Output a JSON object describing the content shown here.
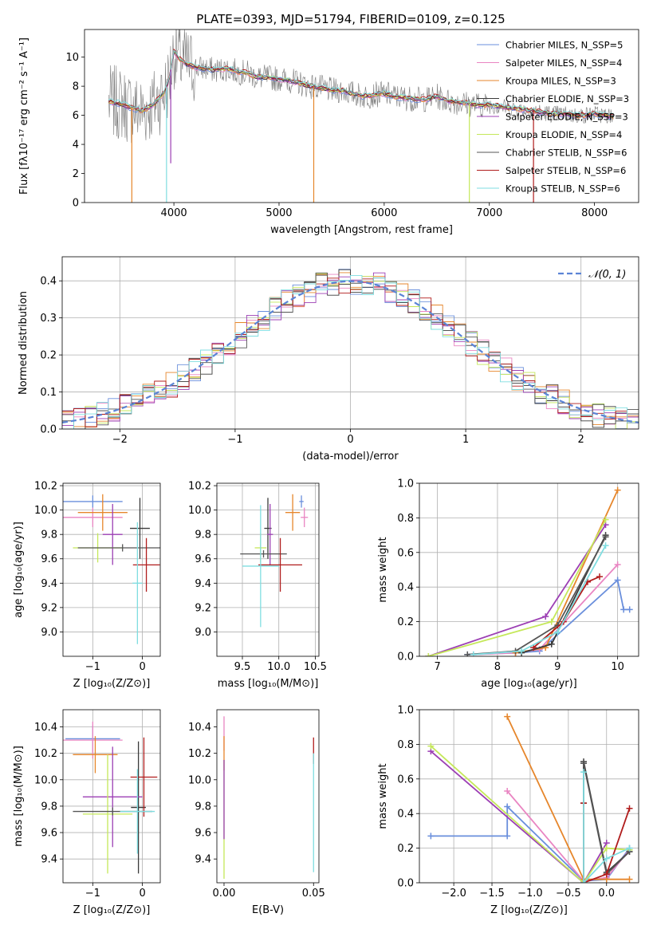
{
  "figure_title": "PLATE=0393, MJD=51794, FIBERID=0109, z=0.125",
  "colors": {
    "Chabrier MILES": "#6a8fdc",
    "Salpeter MILES": "#e985c2",
    "Kroupa MILES": "#e6862b",
    "Chabrier ELODIE": "#3a3a3a",
    "Salpeter ELODIE": "#9c3fb4",
    "Kroupa ELODIE": "#c5e85a",
    "Chabrier STELIB": "#555555",
    "Salpeter STELIB": "#b01c1c",
    "Kroupa STELIB": "#7fdde0"
  },
  "chart_data": [
    {
      "type": "line",
      "title": "PLATE=0393, MJD=51794, FIBERID=0109, z=0.125",
      "xlabel": "wavelength [Angstrom, rest frame]",
      "ylabel": "Flux [fλ10⁻¹⁷ erg cm⁻² s⁻¹ A⁻¹]",
      "xlim": [
        3150,
        8420
      ],
      "ylim": [
        0,
        11.9
      ],
      "xticks": [
        4000,
        5000,
        6000,
        7000,
        8000
      ],
      "yticks": [
        0,
        2,
        4,
        6,
        8,
        10
      ],
      "grid": false,
      "legend": "top-right",
      "legend_entries": [
        "Chabrier MILES, N_SSP=5",
        "Salpeter MILES, N_SSP=4",
        "Kroupa MILES, N_SSP=3",
        "Chabrier ELODIE, N_SSP=3",
        "Salpeter ELODIE, N_SSP=3",
        "Kroupa ELODIE, N_SSP=4",
        "Chabrier STELIB, N_SSP=6",
        "Salpeter STELIB, N_SSP=6",
        "Kroupa STELIB, N_SSP=6"
      ],
      "data_spectrum": {
        "x": [
          3400,
          3500,
          3600,
          3700,
          3800,
          3900,
          3950,
          4000,
          4050,
          4100,
          4200,
          4300,
          4400,
          4500,
          4600,
          4700,
          4800,
          4900,
          5000,
          5100,
          5200,
          5300,
          5400,
          5500,
          5600,
          5700,
          5800,
          5900,
          6000,
          6100,
          6200,
          6300,
          6400,
          6500,
          6600,
          6700,
          6800,
          6900,
          7000,
          7100,
          7200,
          7300,
          7400,
          7500,
          7600,
          7700,
          7800,
          7900,
          8000,
          8100,
          8180
        ],
        "y": [
          6.9,
          6.8,
          6.5,
          6.3,
          6.7,
          7.5,
          8.3,
          10.4,
          9.9,
          9.6,
          9.3,
          9.2,
          9.1,
          9.2,
          9.0,
          8.9,
          8.6,
          8.6,
          8.5,
          8.4,
          8.2,
          8.0,
          7.9,
          7.7,
          7.7,
          7.5,
          7.3,
          7.4,
          7.5,
          7.3,
          7.2,
          7.1,
          7.1,
          7.3,
          7.0,
          6.9,
          6.8,
          6.7,
          6.7,
          6.6,
          6.5,
          6.4,
          6.3,
          6.2,
          6.1,
          6.1,
          6.0,
          6.0,
          6.1,
          6.0,
          5.9
        ]
      },
      "spikes": [
        {
          "x": 3930,
          "y1": 0,
          "series": "Kroupa STELIB"
        },
        {
          "x": 3970,
          "y1": 2.7,
          "series": "Salpeter ELODIE"
        },
        {
          "x": 3600,
          "y1": 0,
          "series": "Kroupa MILES"
        },
        {
          "x": 5330,
          "y1": 0,
          "series": "Kroupa MILES"
        },
        {
          "x": 6810,
          "y1": 0,
          "series": "Kroupa ELODIE"
        },
        {
          "x": 7420,
          "y1": 0,
          "series": "Salpeter STELIB"
        }
      ]
    },
    {
      "type": "line",
      "xlabel": "(data-model)/error",
      "ylabel": "Normed distribution",
      "xlim": [
        -2.5,
        2.5
      ],
      "ylim": [
        0,
        0.465
      ],
      "xticks": [
        -2,
        -1,
        0,
        1,
        2
      ],
      "yticks": [
        0.0,
        0.1,
        0.2,
        0.3,
        0.4
      ],
      "grid": true,
      "legend": "top-right",
      "reference_curve": {
        "name": "𝒩(0, 1)",
        "mean": 0,
        "sigma": 1
      },
      "bin_width": 0.1
    },
    {
      "type": "scatter",
      "xlabel": "Z [log₁₀(Z/Z⊙)]",
      "ylabel": "age  [log₁₀(age/yr)]",
      "xlim": [
        -1.6,
        0.36
      ],
      "ylim": [
        8.8,
        10.22
      ],
      "xticks": [
        -1,
        0
      ],
      "yticks": [
        9.0,
        9.2,
        9.4,
        9.6,
        9.8,
        10.0,
        10.2
      ],
      "grid": true,
      "points": [
        {
          "series": "Chabrier MILES",
          "x": -1.0,
          "xerr": 0.6,
          "y": 10.07,
          "yerr": 0.05
        },
        {
          "series": "Salpeter MILES",
          "x": -1.0,
          "xerr": 0.6,
          "y": 9.94,
          "yerr": 0.08
        },
        {
          "series": "Kroupa MILES",
          "x": -0.8,
          "xerr": 0.5,
          "y": 9.98,
          "yerr": 0.15
        },
        {
          "series": "Chabrier ELODIE",
          "x": -0.05,
          "xerr": 0.2,
          "y": 9.85,
          "yerr": 0.25
        },
        {
          "series": "Salpeter ELODIE",
          "x": -0.6,
          "xerr": 0.2,
          "y": 9.8,
          "yerr": 0.25
        },
        {
          "series": "Kroupa ELODIE",
          "x": -0.9,
          "xerr": 0.5,
          "y": 9.69,
          "yerr": 0.12
        },
        {
          "series": "Chabrier STELIB",
          "x": -0.4,
          "xerr": 0.9,
          "y": 9.69,
          "yerr": 0.03
        },
        {
          "series": "Salpeter STELIB",
          "x": 0.08,
          "xerr": 0.27,
          "y": 9.55,
          "yerr": 0.22
        },
        {
          "series": "Kroupa STELIB",
          "x": -0.1,
          "xerr": 0.1,
          "y": 9.4,
          "yerr": 0.5
        }
      ]
    },
    {
      "type": "scatter",
      "xlabel": "mass [log₁₀(M/M⊙)]",
      "xlim": [
        9.15,
        10.55
      ],
      "ylim": [
        8.8,
        10.22
      ],
      "xticks": [
        9.5,
        10.0,
        10.5
      ],
      "yticks": [
        9.0,
        9.2,
        9.4,
        9.6,
        9.8,
        10.0,
        10.2
      ],
      "grid": true,
      "points": [
        {
          "series": "Chabrier MILES",
          "x": 10.31,
          "xerr": 0.03,
          "y": 10.07,
          "yerr": 0.05
        },
        {
          "series": "Salpeter MILES",
          "x": 10.35,
          "xerr": 0.05,
          "y": 9.94,
          "yerr": 0.08
        },
        {
          "series": "Kroupa MILES",
          "x": 10.19,
          "xerr": 0.1,
          "y": 9.98,
          "yerr": 0.15
        },
        {
          "series": "Chabrier ELODIE",
          "x": 9.85,
          "xerr": 0.05,
          "y": 9.85,
          "yerr": 0.25
        },
        {
          "series": "Salpeter ELODIE",
          "x": 9.88,
          "xerr": 0.04,
          "y": 9.8,
          "yerr": 0.25
        },
        {
          "series": "Kroupa ELODIE",
          "x": 9.75,
          "xerr": 0.08,
          "y": 9.69,
          "yerr": 0.12
        },
        {
          "series": "Chabrier STELIB",
          "x": 9.79,
          "xerr": 0.32,
          "y": 9.64,
          "yerr": 0.03
        },
        {
          "series": "Salpeter STELIB",
          "x": 10.02,
          "xerr": 0.3,
          "y": 9.55,
          "yerr": 0.22
        },
        {
          "series": "Kroupa STELIB",
          "x": 9.75,
          "xerr": 0.25,
          "y": 9.54,
          "yerr": 0.5
        }
      ]
    },
    {
      "type": "line",
      "xlabel": "age  [log₁₀(age/yr)]",
      "ylabel": "mass weight",
      "xlim": [
        6.7,
        10.35
      ],
      "ylim": [
        0,
        1.0
      ],
      "xticks": [
        7,
        8,
        9,
        10
      ],
      "yticks": [
        0.0,
        0.2,
        0.4,
        0.6,
        0.8,
        1.0
      ],
      "grid": true,
      "series": [
        {
          "name": "Chabrier MILES",
          "x": [
            7.5,
            8.3,
            8.7,
            10.0,
            10.1,
            10.2
          ],
          "y": [
            0.01,
            0.02,
            0.03,
            0.44,
            0.27,
            0.27
          ]
        },
        {
          "name": "Salpeter MILES",
          "x": [
            7.6,
            8.3,
            8.7,
            10.0
          ],
          "y": [
            0.01,
            0.02,
            0.04,
            0.53
          ]
        },
        {
          "name": "Kroupa MILES",
          "x": [
            8.3,
            8.8,
            10.0
          ],
          "y": [
            0.02,
            0.05,
            0.96
          ]
        },
        {
          "name": "Chabrier ELODIE",
          "x": [
            8.4,
            8.9,
            9.8
          ],
          "y": [
            0.02,
            0.07,
            0.7
          ]
        },
        {
          "name": "Salpeter ELODIE",
          "x": [
            6.85,
            8.8,
            9.8
          ],
          "y": [
            0.0,
            0.23,
            0.76
          ]
        },
        {
          "name": "Kroupa ELODIE",
          "x": [
            6.85,
            8.9,
            9.8
          ],
          "y": [
            0.0,
            0.2,
            0.79
          ]
        },
        {
          "name": "Chabrier STELIB",
          "x": [
            7.5,
            8.3,
            9.0,
            9.8
          ],
          "y": [
            0.01,
            0.03,
            0.18,
            0.69
          ]
        },
        {
          "name": "Salpeter STELIB",
          "x": [
            8.6,
            9.1,
            9.5,
            9.7
          ],
          "y": [
            0.05,
            0.2,
            0.43,
            0.46
          ]
        },
        {
          "name": "Kroupa STELIB",
          "x": [
            7.6,
            8.4,
            9.0,
            9.8
          ],
          "y": [
            0.01,
            0.03,
            0.14,
            0.64
          ]
        }
      ]
    },
    {
      "type": "scatter",
      "xlabel": "Z [log₁₀(Z/Z⊙)]",
      "ylabel": "mass [log₁₀(M/M⊙)]",
      "xlim": [
        -1.6,
        0.36
      ],
      "ylim": [
        9.22,
        10.53
      ],
      "xticks": [
        -1,
        0
      ],
      "yticks": [
        9.4,
        9.6,
        9.8,
        10.0,
        10.2,
        10.4
      ],
      "grid": true,
      "points": [
        {
          "series": "Chabrier MILES",
          "x": -1.0,
          "xerr": 0.55,
          "y": 10.31,
          "yerr": 0.1
        },
        {
          "series": "Salpeter MILES",
          "x": -1.0,
          "xerr": 0.6,
          "y": 10.3,
          "yerr": 0.14
        },
        {
          "series": "Kroupa MILES",
          "x": -0.95,
          "xerr": 0.45,
          "y": 10.19,
          "yerr": 0.14
        },
        {
          "series": "Chabrier ELODIE",
          "x": -0.08,
          "xerr": 0.15,
          "y": 9.79,
          "yerr": 0.5
        },
        {
          "series": "Salpeter ELODIE",
          "x": -0.6,
          "xerr": 0.6,
          "y": 9.87,
          "yerr": 0.38
        },
        {
          "series": "Kroupa ELODIE",
          "x": -0.7,
          "xerr": 0.5,
          "y": 9.74,
          "yerr": 0.45
        },
        {
          "series": "Chabrier STELIB",
          "x": -0.6,
          "xerr": 0.8,
          "y": 9.76,
          "yerr": 0.03
        },
        {
          "series": "Salpeter STELIB",
          "x": 0.03,
          "xerr": 0.27,
          "y": 10.02,
          "yerr": 0.3
        },
        {
          "series": "Kroupa STELIB",
          "x": -0.1,
          "xerr": 0.35,
          "y": 9.76,
          "yerr": 0.32
        }
      ]
    },
    {
      "type": "scatter",
      "xlabel": "E(B-V)",
      "xlim": [
        -0.004,
        0.053
      ],
      "ylim": [
        9.22,
        10.53
      ],
      "xticks": [
        0.0,
        0.05
      ],
      "yticks": [
        9.4,
        9.6,
        9.8,
        10.0,
        10.2,
        10.4
      ],
      "grid": false,
      "points": [
        {
          "series": "Salpeter MILES",
          "x": 0.0,
          "y": 10.35,
          "yerr": 0.13
        },
        {
          "series": "Kroupa MILES",
          "x": 0.0,
          "y": 10.2,
          "yerr": 0.13
        },
        {
          "series": "Kroupa ELODIE",
          "x": 0.0,
          "y": 9.7,
          "yerr": 0.45
        },
        {
          "series": "Salpeter ELODIE",
          "x": 0.0,
          "y": 9.85,
          "yerr": 0.3
        },
        {
          "series": "Salpeter STELIB",
          "x": 0.05,
          "y": 10.22,
          "yerr": 0.1
        },
        {
          "series": "Kroupa STELIB",
          "x": 0.05,
          "y": 9.75,
          "yerr": 0.45
        }
      ]
    },
    {
      "type": "line",
      "xlabel": "Z [log₁₀(Z/Z⊙)]",
      "ylabel": "mass weight",
      "xlim": [
        -2.45,
        0.42
      ],
      "ylim": [
        0,
        1.0
      ],
      "xticks": [
        -2.0,
        -1.5,
        -1.0,
        -0.5,
        0.0
      ],
      "yticks": [
        0.0,
        0.2,
        0.4,
        0.6,
        0.8,
        1.0
      ],
      "grid": true,
      "series": [
        {
          "name": "Chabrier MILES",
          "x": [
            -2.3,
            -1.3,
            -1.3,
            -0.3,
            0.0,
            0.3
          ],
          "y": [
            0.27,
            0.27,
            0.44,
            0.01,
            0.02,
            0.2
          ]
        },
        {
          "name": "Salpeter MILES",
          "x": [
            -1.3,
            -0.3,
            0.0,
            0.3
          ],
          "y": [
            0.53,
            0.01,
            0.03,
            0.19
          ]
        },
        {
          "name": "Kroupa MILES",
          "x": [
            -1.3,
            -0.3,
            0.0,
            0.3
          ],
          "y": [
            0.96,
            0.02,
            0.02,
            0.02
          ]
        },
        {
          "name": "Chabrier ELODIE",
          "x": [
            -0.3,
            -0.3,
            0.0,
            0.3
          ],
          "y": [
            0.46,
            0.7,
            0.06,
            0.18
          ]
        },
        {
          "name": "Salpeter ELODIE",
          "x": [
            -2.3,
            -0.3,
            0.0
          ],
          "y": [
            0.76,
            0.0,
            0.23
          ]
        },
        {
          "name": "Kroupa ELODIE",
          "x": [
            -2.3,
            -0.3,
            0.0,
            0.3
          ],
          "y": [
            0.79,
            0.0,
            0.2,
            0.19
          ]
        },
        {
          "name": "Chabrier STELIB",
          "x": [
            -0.3,
            0.0,
            0.3
          ],
          "y": [
            0.69,
            0.05,
            0.18
          ]
        },
        {
          "name": "Salpeter STELIB",
          "x": [
            -0.3,
            -0.3,
            0.0,
            0.3
          ],
          "y": [
            0.46,
            0.0,
            0.05,
            0.43
          ]
        },
        {
          "name": "Kroupa STELIB",
          "x": [
            -0.3,
            -0.3,
            0.0,
            0.3
          ],
          "y": [
            0.64,
            0.0,
            0.14,
            0.2
          ]
        }
      ]
    }
  ]
}
